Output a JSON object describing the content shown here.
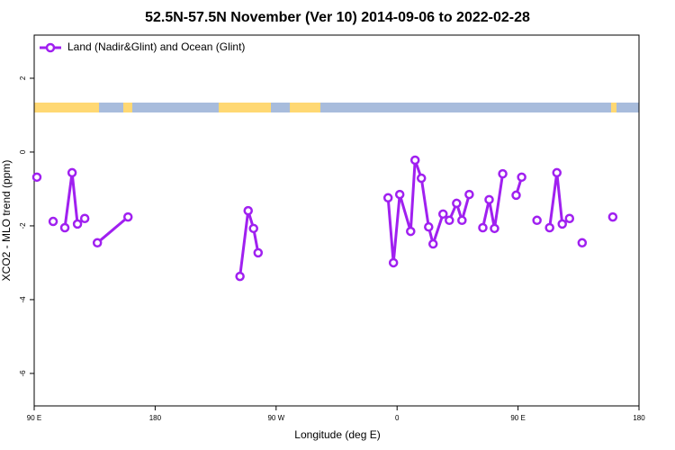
{
  "chart_data": {
    "type": "line",
    "title": "52.5N-57.5N November (Ver 10)   2014-09-06 to 2022-02-28",
    "xlabel": "Longitude (deg E)",
    "ylabel": "XCO2 - MLO trend (ppm)",
    "xlim": [
      90,
      540
    ],
    "xticks": [
      {
        "value": 90,
        "label": "90 E"
      },
      180,
      {
        "value": 270,
        "label": "90 W"
      },
      {
        "value": 360,
        "label": "0"
      },
      {
        "value": 450,
        "label": "90 E"
      },
      180
    ],
    "ylim": [
      -6.88,
      3.17
    ],
    "yticks": [
      -6,
      -4,
      -2,
      0,
      2
    ],
    "legend": "top-left",
    "series": [
      {
        "name": "Land (Nadir&Glint) and Ocean (Glint)",
        "color": "#a020f0",
        "x": [
          92.0,
          null,
          104.1,
          null,
          112.8,
          118.2,
          122.2,
          127.6,
          null,
          137.0,
          159.8,
          null,
          243.1,
          249.2,
          253.2,
          256.6,
          null,
          353.3,
          357.3,
          362.0,
          370.1,
          373.4,
          378.1,
          383.5,
          386.8,
          394.2,
          398.9,
          404.3,
          408.3,
          413.7,
          null,
          423.8,
          428.5,
          432.5,
          438.6,
          null,
          448.6,
          452.7,
          null,
          464.1,
          null,
          473.5,
          478.9,
          482.9,
          488.3,
          null,
          497.7,
          null,
          520.5
        ],
        "values": [
          -0.68,
          null,
          -1.88,
          null,
          -2.05,
          -0.56,
          -1.95,
          -1.8,
          null,
          -2.46,
          -1.76,
          null,
          -3.37,
          -1.59,
          -2.07,
          -2.73,
          null,
          -1.24,
          -3.0,
          -1.15,
          -2.15,
          -0.22,
          -0.71,
          -2.03,
          -2.49,
          -1.68,
          -1.85,
          -1.39,
          -1.85,
          -1.15,
          null,
          -2.05,
          -1.29,
          -2.07,
          -0.59,
          null,
          -1.17,
          -0.68,
          null,
          -1.85,
          null,
          -2.05,
          -0.56,
          -1.95,
          -1.8,
          null,
          -2.46,
          null,
          -1.76
        ]
      }
    ]
  }
}
